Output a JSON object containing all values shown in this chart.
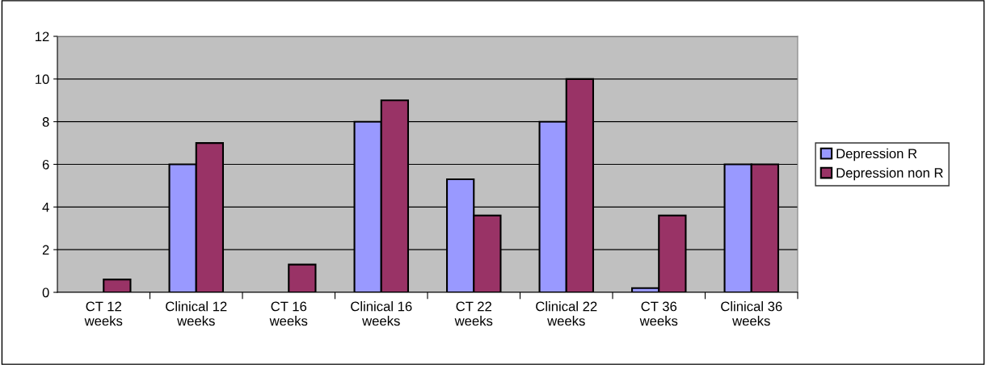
{
  "chart_data": {
    "type": "bar",
    "categories": [
      "CT 12 weeks",
      "Clinical 12 weeks",
      "CT 16 weeks",
      "Clinical 16 weeks",
      "CT 22 weeks",
      "Clinical 22 weeks",
      "CT 36 weeks",
      "Clinical 36 weeks"
    ],
    "series": [
      {
        "name": "Depression R",
        "color": "#9999ff",
        "values": [
          0,
          6,
          0,
          8,
          5.3,
          8,
          0.2,
          6
        ]
      },
      {
        "name": "Depression non R",
        "color": "#993366",
        "values": [
          0.6,
          7,
          1.3,
          9,
          3.6,
          10,
          3.6,
          6
        ]
      }
    ],
    "ylim": [
      0,
      12
    ],
    "yticks": [
      0,
      2,
      4,
      6,
      8,
      10,
      12
    ],
    "grid": "y",
    "legend": "right"
  }
}
